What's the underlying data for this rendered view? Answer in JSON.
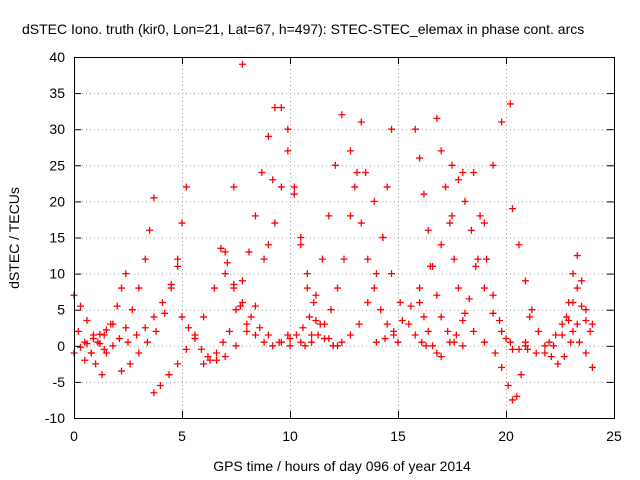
{
  "chart_data": {
    "type": "scatter",
    "title": "dSTEC Iono. truth (kir0, Lon=21, Lat=67, h=497): STEC-STEC_elemax in phase cont. arcs",
    "xlabel": "GPS time / hours of day 096 of year 2014",
    "ylabel": "dSTEC  / TECUs",
    "xlim": [
      0,
      25
    ],
    "ylim": [
      -10,
      40
    ],
    "xticks": [
      0,
      5,
      10,
      15,
      20,
      25
    ],
    "yticks": [
      -10,
      -5,
      0,
      5,
      10,
      15,
      20,
      25,
      30,
      35,
      40
    ],
    "grid": true,
    "marker": "+",
    "colors": {
      "points": "#ff0000",
      "grid": "#a0a0a0",
      "axes": "#000000"
    },
    "arcs": [
      {
        "x": [
          0.0,
          0.3,
          0.6,
          0.9,
          1.2,
          1.4
        ],
        "y": [
          7.0,
          5.5,
          3.5,
          1.5,
          0.3,
          -0.5
        ]
      },
      {
        "x": [
          0.0,
          0.3,
          0.6,
          0.9,
          1.2,
          1.5,
          1.8
        ],
        "y": [
          -1.0,
          -0.2,
          0.3,
          1.0,
          1.6,
          2.2,
          3.0
        ]
      },
      {
        "x": [
          0.2,
          0.5,
          0.8,
          1.0,
          1.3
        ],
        "y": [
          2.0,
          0.5,
          -1.0,
          -2.5,
          -4.0
        ]
      },
      {
        "x": [
          0.5,
          0.8,
          1.1,
          1.4,
          1.7,
          2.0,
          2.2,
          2.4
        ],
        "y": [
          -2.0,
          -1.0,
          0.5,
          1.5,
          3.0,
          5.5,
          8.0,
          10.0
        ]
      },
      {
        "x": [
          1.5,
          1.8,
          2.1,
          2.4,
          2.7,
          3.0,
          3.3,
          3.5,
          3.7
        ],
        "y": [
          -1.0,
          0.0,
          1.0,
          2.5,
          5.0,
          8.0,
          12.0,
          16.0,
          20.5
        ]
      },
      {
        "x": [
          2.2,
          2.6,
          3.0,
          3.4,
          3.8,
          4.2,
          4.5,
          4.8,
          5.0,
          5.2
        ],
        "y": [
          -3.5,
          -2.5,
          -1.0,
          0.5,
          2.0,
          4.5,
          8.0,
          12.0,
          17.0,
          22.0
        ]
      },
      {
        "x": [
          2.5,
          2.9,
          3.3,
          3.7,
          4.1,
          4.5,
          4.8
        ],
        "y": [
          0.5,
          1.5,
          2.5,
          4.0,
          6.0,
          8.5,
          11.0
        ]
      },
      {
        "x": [
          3.7,
          4.0,
          4.4,
          4.8,
          5.2,
          5.6,
          6.0,
          6.5,
          7.0,
          7.4,
          7.8
        ],
        "y": [
          -6.5,
          -5.5,
          -4.0,
          -2.5,
          -0.5,
          1.5,
          4.0,
          8.0,
          13.0,
          22.0,
          39.0
        ]
      },
      {
        "x": [
          5.0,
          5.3,
          5.6,
          5.9,
          6.2,
          6.6,
          7.0,
          7.5,
          8.0,
          8.4,
          8.8,
          9.2
        ],
        "y": [
          4.0,
          2.5,
          1.0,
          -0.5,
          -1.5,
          -2.0,
          -1.5,
          0.0,
          2.0,
          5.5,
          12.0,
          23.0
        ]
      },
      {
        "x": [
          6.0,
          6.3,
          6.6,
          6.9,
          7.2,
          7.5,
          7.8,
          8.1,
          8.4,
          8.7,
          9.0,
          9.3
        ],
        "y": [
          -2.5,
          -2.0,
          -1.0,
          0.5,
          2.0,
          5.0,
          9.0,
          13.0,
          18.0,
          24.0,
          29.0,
          33.0
        ]
      },
      {
        "x": [
          6.8,
          7.1,
          7.4,
          7.7,
          8.0,
          8.4,
          8.8,
          9.2,
          9.6,
          9.9
        ],
        "y": [
          13.5,
          11.5,
          8.5,
          5.5,
          3.0,
          1.5,
          0.5,
          0.0,
          0.5,
          1.5
        ]
      },
      {
        "x": [
          7.0,
          7.4,
          7.8,
          8.2,
          8.6,
          9.0,
          9.5,
          10.0,
          10.5,
          11.0
        ],
        "y": [
          10.0,
          8.0,
          6.0,
          4.0,
          2.5,
          1.5,
          0.5,
          0.0,
          0.5,
          1.5
        ]
      },
      {
        "x": [
          9.0,
          9.3,
          9.6,
          9.9,
          10.2,
          10.5,
          10.8,
          11.2,
          11.6,
          12.0
        ],
        "y": [
          14.0,
          17.0,
          22.0,
          30.0,
          22.0,
          14.0,
          8.0,
          3.5,
          1.0,
          0.0
        ]
      },
      {
        "x": [
          9.6,
          9.9,
          10.2,
          10.5,
          10.8,
          11.1,
          11.4,
          11.8,
          12.2
        ],
        "y": [
          33.0,
          27.0,
          21.0,
          15.0,
          10.0,
          6.0,
          3.0,
          1.0,
          0.0
        ]
      },
      {
        "x": [
          10.0,
          10.3,
          10.6,
          10.9,
          11.2,
          11.5,
          11.8,
          12.1,
          12.4
        ],
        "y": [
          1.0,
          1.5,
          2.5,
          4.0,
          7.0,
          12.0,
          18.0,
          25.0,
          32.0
        ]
      },
      {
        "x": [
          10.7,
          11.0,
          11.3,
          11.6,
          11.9,
          12.2,
          12.5,
          12.8,
          13.1,
          13.3
        ],
        "y": [
          0.0,
          0.5,
          1.5,
          3.0,
          5.0,
          8.0,
          12.0,
          18.0,
          24.0,
          31.0
        ]
      },
      {
        "x": [
          12.0,
          12.4,
          12.8,
          13.2,
          13.6,
          14.0,
          14.3,
          14.5,
          14.7
        ],
        "y": [
          0.0,
          0.5,
          1.5,
          3.0,
          6.0,
          10.0,
          15.0,
          22.0,
          30.0
        ]
      },
      {
        "x": [
          12.8,
          13.0,
          13.3,
          13.6,
          13.9,
          14.2,
          14.5,
          14.8,
          15.0
        ],
        "y": [
          27.0,
          22.0,
          17.0,
          12.0,
          8.0,
          5.0,
          3.0,
          1.5,
          0.5
        ]
      },
      {
        "x": [
          13.5,
          13.9,
          14.3,
          14.7,
          15.1,
          15.5,
          15.8,
          16.1,
          16.3
        ],
        "y": [
          24.0,
          20.0,
          15.0,
          10.0,
          6.0,
          3.0,
          1.5,
          0.5,
          0.0
        ]
      },
      {
        "x": [
          14.0,
          14.4,
          14.8,
          15.2,
          15.6,
          16.0,
          16.5,
          17.0,
          17.5,
          18.0
        ],
        "y": [
          0.5,
          1.0,
          2.0,
          3.5,
          5.5,
          8.0,
          11.0,
          14.0,
          18.0,
          24.0
        ]
      },
      {
        "x": [
          15.8,
          16.0,
          16.2,
          16.4,
          16.6,
          16.8,
          17.0,
          17.3,
          17.6,
          18.0
        ],
        "y": [
          30.0,
          26.0,
          21.0,
          16.0,
          11.0,
          7.0,
          4.0,
          2.0,
          0.5,
          0.0
        ]
      },
      {
        "x": [
          16.0,
          16.2,
          16.4,
          16.6,
          16.8,
          17.0
        ],
        "y": [
          6.0,
          4.0,
          2.0,
          0.0,
          -1.0,
          -1.5
        ]
      },
      {
        "x": [
          16.8,
          17.0,
          17.2,
          17.4,
          17.6,
          17.8,
          18.1,
          18.5,
          19.0
        ],
        "y": [
          31.5,
          27.0,
          22.0,
          17.0,
          12.0,
          8.0,
          4.5,
          2.0,
          0.5
        ]
      },
      {
        "x": [
          17.4,
          17.7,
          18.0,
          18.3,
          18.6,
          19.0,
          19.4,
          19.8,
          20.2
        ],
        "y": [
          0.5,
          1.5,
          3.5,
          6.5,
          11.0,
          17.0,
          25.0,
          31.0,
          33.5
        ]
      },
      {
        "x": [
          17.5,
          17.8,
          18.1,
          18.4,
          18.7,
          19.0,
          19.4,
          19.8,
          20.2
        ],
        "y": [
          25.0,
          23.0,
          20.0,
          16.0,
          12.0,
          8.0,
          4.5,
          2.0,
          0.5
        ]
      },
      {
        "x": [
          18.5,
          18.8,
          19.1,
          19.4,
          19.7,
          20.0,
          20.3,
          20.6,
          20.9
        ],
        "y": [
          24.0,
          18.0,
          12.0,
          7.0,
          3.5,
          1.0,
          -0.5,
          -0.5,
          0.5
        ]
      },
      {
        "x": [
          19.5,
          19.8,
          20.1,
          20.3,
          20.5,
          20.7,
          20.9,
          21.1
        ],
        "y": [
          -1.0,
          -3.0,
          -5.5,
          -7.5,
          -7.0,
          -4.0,
          0.0,
          4.0
        ]
      },
      {
        "x": [
          20.3,
          20.6,
          20.9,
          21.2,
          21.5,
          21.8,
          22.1,
          22.4,
          22.7,
          23.0,
          23.3
        ],
        "y": [
          19.0,
          14.0,
          9.0,
          5.0,
          2.0,
          0.0,
          -1.5,
          -2.5,
          -1.5,
          0.5,
          3.0
        ]
      },
      {
        "x": [
          21.0,
          21.4,
          21.8,
          22.2,
          22.6,
          22.9,
          23.1,
          23.3,
          23.5,
          23.7,
          24.0
        ],
        "y": [
          -0.5,
          -1.0,
          -1.0,
          0.0,
          1.5,
          3.5,
          6.0,
          8.0,
          5.5,
          3.5,
          3.0
        ]
      },
      {
        "x": [
          22.0,
          22.3,
          22.6,
          22.9,
          23.1,
          23.3,
          23.5,
          23.7,
          23.9
        ],
        "y": [
          0.5,
          1.5,
          3.0,
          6.0,
          10.0,
          12.5,
          9.0,
          5.0,
          2.0
        ]
      },
      {
        "x": [
          22.8,
          23.1,
          23.4,
          23.7,
          24.0
        ],
        "y": [
          4.0,
          2.0,
          0.5,
          -1.0,
          -3.0
        ]
      }
    ]
  }
}
